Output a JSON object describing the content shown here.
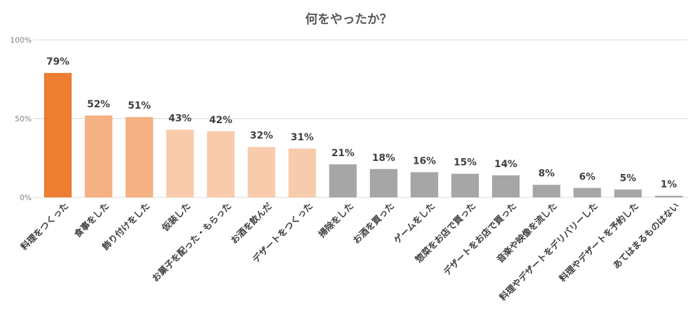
{
  "chart_data": {
    "type": "bar",
    "title": "何をやったか？",
    "categories": [
      "料理をつくった",
      "食事をした",
      "飾り付けをした",
      "仮装した",
      "お菓子を配った・もらった",
      "お酒を飲んだ",
      "デザートをつくった",
      "掃除をした",
      "お酒を買った",
      "ゲームをした",
      "惣菜をお店で買った",
      "デザートをお店で買った",
      "音楽や映像を流した",
      "料理やデザートをデリバリーした",
      "料理やデザートを予約した",
      "あてはまるものはない"
    ],
    "values": [
      79,
      52,
      51,
      43,
      42,
      32,
      31,
      21,
      18,
      16,
      15,
      14,
      8,
      6,
      5,
      1
    ],
    "value_labels": [
      "79%",
      "52%",
      "51%",
      "43%",
      "42%",
      "32%",
      "31%",
      "21%",
      "18%",
      "16%",
      "15%",
      "14%",
      "8%",
      "6%",
      "5%",
      "1%"
    ],
    "bar_colors": [
      "#ed7d31",
      "#f4b183",
      "#f4b183",
      "#f8cbad",
      "#f8cbad",
      "#f8cbad",
      "#f8cbad",
      "#a6a6a6",
      "#a6a6a6",
      "#a6a6a6",
      "#a6a6a6",
      "#a6a6a6",
      "#a6a6a6",
      "#a6a6a6",
      "#a6a6a6",
      "#a6a6a6"
    ],
    "ylim": [
      0,
      100
    ],
    "yticks": [
      0,
      50,
      100
    ],
    "ytick_labels": [
      "0%",
      "50%",
      "100%"
    ],
    "grid": true,
    "legend": "none"
  }
}
